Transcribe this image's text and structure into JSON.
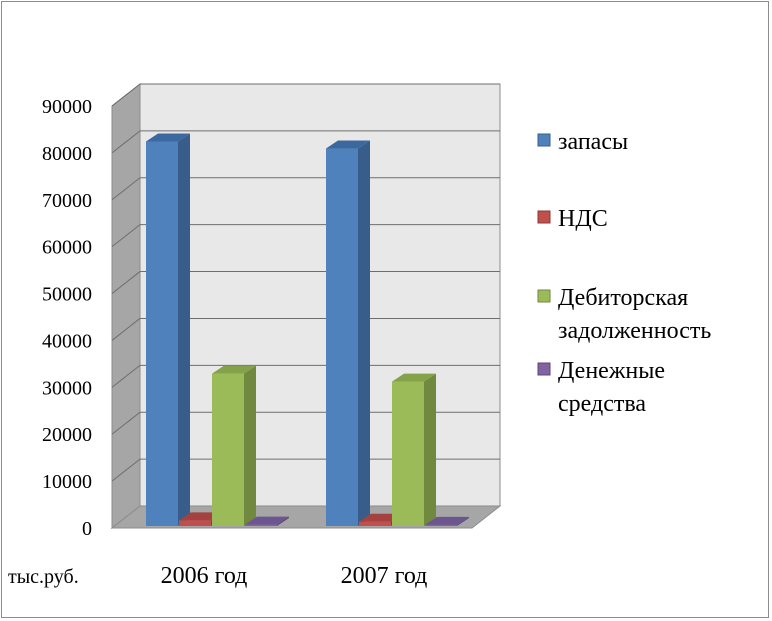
{
  "chart_data": {
    "type": "bar",
    "style": "3d-clustered-column",
    "categories": [
      "2006 год",
      "2007 год"
    ],
    "series": [
      {
        "name": "запасы",
        "values": [
          82000,
          80500
        ],
        "color": "#4f81bd",
        "side": "#385d8a",
        "top": "#3c68a0"
      },
      {
        "name": "НДС",
        "values": [
          1200,
          900
        ],
        "color": "#c0504d",
        "side": "#8c3836",
        "top": "#a5413f"
      },
      {
        "name": "Дебиторская задолженность",
        "values": [
          32500,
          30800
        ],
        "color": "#9bbb59",
        "side": "#71893f",
        "top": "#84a24a"
      },
      {
        "name": "Денежные средства",
        "values": [
          300,
          250
        ],
        "color": "#8064a2",
        "side": "#5c4776",
        "top": "#6d5590"
      }
    ],
    "legend_lines": [
      [
        "запасы"
      ],
      [
        "НДС"
      ],
      [
        "Дебиторская",
        "задолженность"
      ],
      [
        "Денежные",
        "средства"
      ]
    ],
    "ylim": [
      0,
      90000
    ],
    "yticks": [
      "0",
      "10000",
      "20000",
      "30000",
      "40000",
      "50000",
      "60000",
      "70000",
      "80000",
      "90000"
    ],
    "unit_label": "тыс.руб.",
    "grid": true,
    "legend_position": "right"
  }
}
